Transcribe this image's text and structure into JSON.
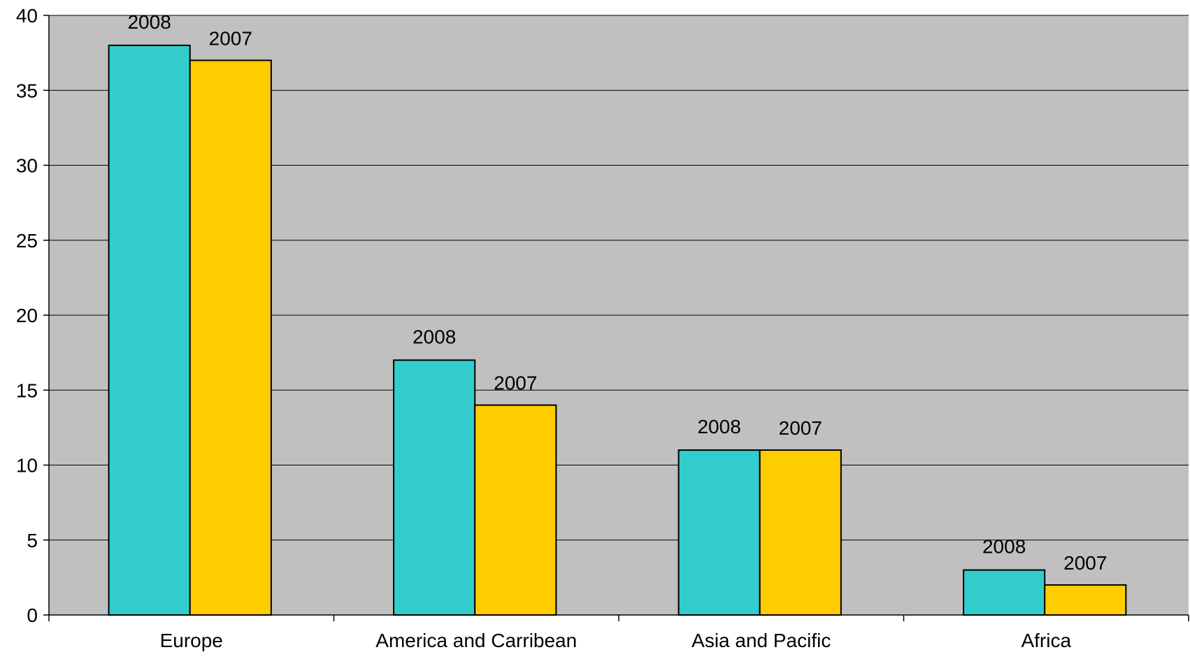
{
  "chart_data": {
    "type": "bar",
    "title": "",
    "xlabel": "",
    "ylabel": "",
    "categories": [
      "Europe",
      "America and Carribean",
      "Asia and Pacific",
      "Africa"
    ],
    "series": [
      {
        "label": "2008",
        "color": "#33CCCC",
        "values": [
          38,
          17,
          11,
          3
        ]
      },
      {
        "label": "2007",
        "color": "#FFCC00",
        "values": [
          37,
          14,
          11,
          2
        ]
      }
    ],
    "ylim": [
      0,
      40
    ],
    "yticks": [
      0,
      5,
      10,
      15,
      20,
      25,
      30,
      35,
      40
    ],
    "grid": true,
    "legend": "none",
    "plot_background": "#C0C0C0"
  }
}
